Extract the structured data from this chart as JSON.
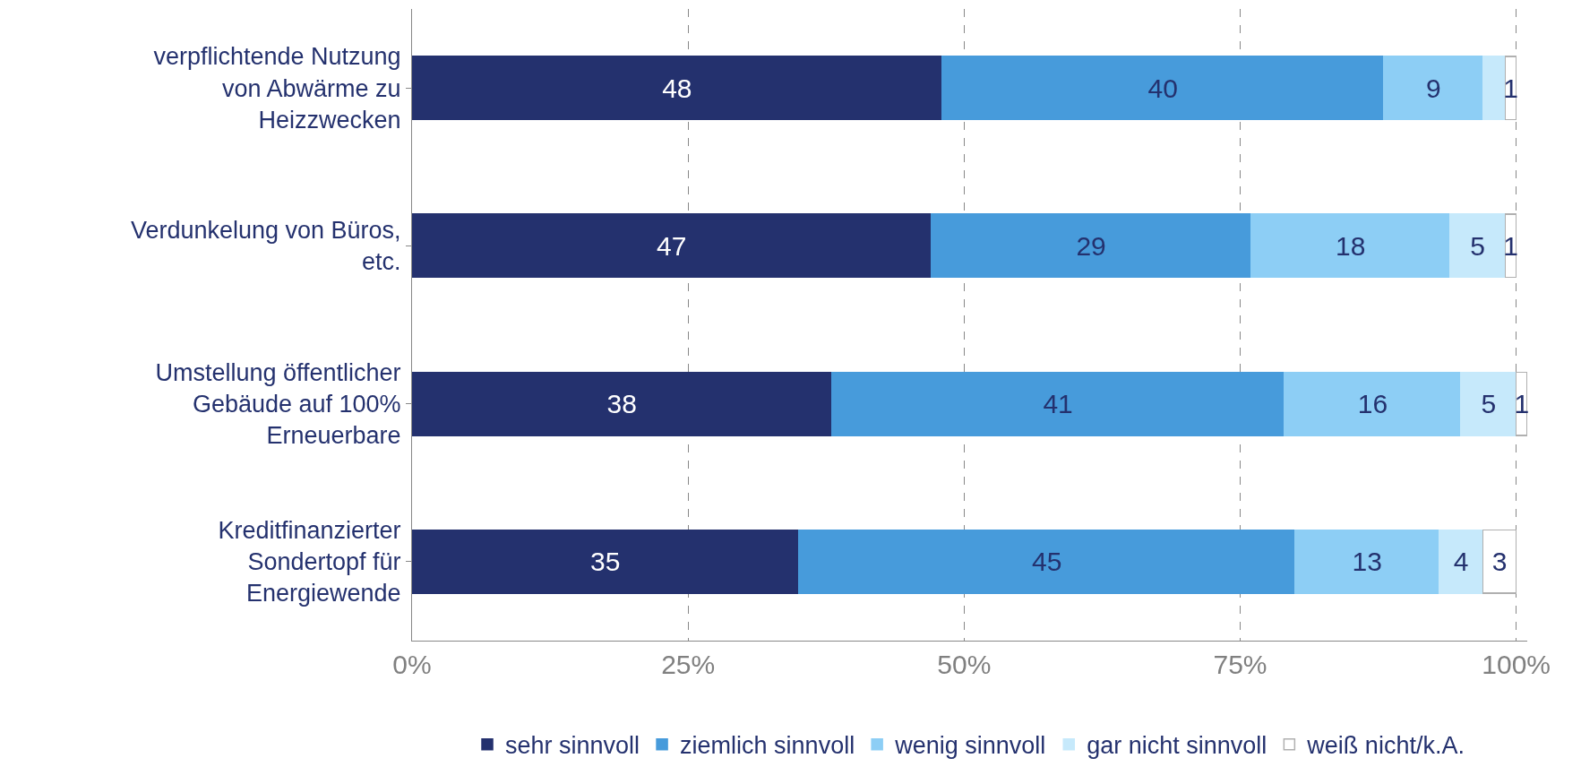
{
  "chart_data": {
    "type": "bar",
    "orientation": "horizontal",
    "stacked": true,
    "categories": [
      "verpflichtende Nutzung von Abwärme zu Heizzwecken",
      "Verdunkelung von Büros, etc.",
      "Umstellung öffentlicher Gebäude auf 100% Erneuerbare",
      "Kreditfinanzierter Sondertopf für Energiewende"
    ],
    "series": [
      {
        "name": "sehr sinnvoll",
        "color": "#24316e",
        "values": [
          48,
          47,
          38,
          35
        ],
        "value_labels": [
          "48",
          "47",
          "38",
          "35"
        ]
      },
      {
        "name": "ziemlich sinnvoll",
        "color": "#479bdb",
        "values": [
          40,
          29,
          41,
          45
        ],
        "value_labels": [
          "40",
          "29",
          "41",
          "45"
        ]
      },
      {
        "name": "wenig sinnvoll",
        "color": "#8dcef5",
        "values": [
          9,
          18,
          16,
          13
        ],
        "value_labels": [
          "9",
          "18",
          "16",
          "13"
        ]
      },
      {
        "name": "gar nicht sinnvoll",
        "color": "#c6e9fb",
        "values": [
          2,
          5,
          5,
          4
        ],
        "value_labels": [
          null,
          "5",
          "5",
          "4"
        ]
      },
      {
        "name": "weiß nicht/k.A.",
        "color": "#ffffff",
        "values": [
          1,
          1,
          1,
          3
        ],
        "value_labels": [
          "1",
          "1",
          "1",
          "3"
        ]
      }
    ],
    "xlim": [
      0,
      101
    ],
    "xticks": [
      {
        "value": 0,
        "label": "0%"
      },
      {
        "value": 25,
        "label": "25%"
      },
      {
        "value": 50,
        "label": "50%"
      },
      {
        "value": 75,
        "label": "75%"
      },
      {
        "value": 100,
        "label": "100%"
      }
    ],
    "grid": "x",
    "legend": "bottom"
  }
}
